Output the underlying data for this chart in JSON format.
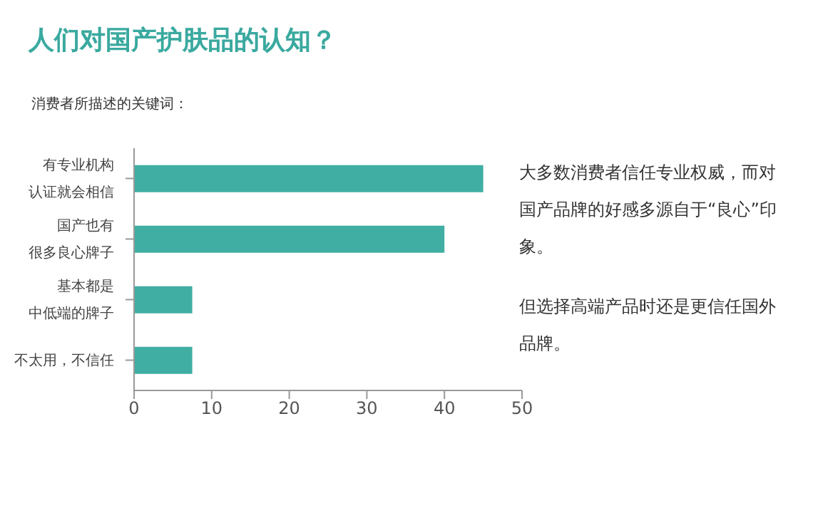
{
  "chart_data": {
    "type": "bar",
    "orientation": "horizontal",
    "title": "人们对国产护肤品的认知？",
    "subtitle": "消费者所描述的关键词：",
    "categories": [
      "有专业机构认证就会相信",
      "国产也有很多良心牌子",
      "基本都是中低端的牌子",
      "不太用，不信任"
    ],
    "values": [
      45,
      40,
      7.5,
      7.5
    ],
    "color": "#40aea3",
    "xlim": [
      0,
      50
    ],
    "xticks": [
      0,
      10,
      20,
      30,
      40,
      50
    ],
    "grid": false,
    "annotations": [
      "大多数消费者信任专业权威，而对国产品牌的好感多源自于“良心”印象。",
      "但选择高端产品时还是更信任国外品牌。"
    ]
  }
}
